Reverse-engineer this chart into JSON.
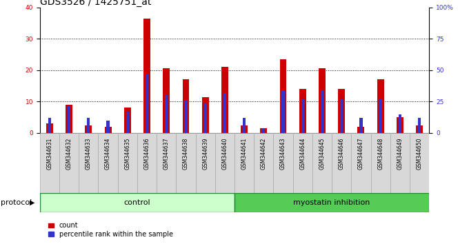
{
  "title": "GDS3526 / 1425751_at",
  "samples": [
    "GSM344631",
    "GSM344632",
    "GSM344633",
    "GSM344634",
    "GSM344635",
    "GSM344636",
    "GSM344637",
    "GSM344638",
    "GSM344639",
    "GSM344640",
    "GSM344641",
    "GSM344642",
    "GSM344643",
    "GSM344644",
    "GSM344645",
    "GSM344646",
    "GSM344647",
    "GSM344648",
    "GSM344649",
    "GSM344650"
  ],
  "count": [
    3,
    9,
    2.5,
    2,
    8,
    36.5,
    20.5,
    17,
    11.5,
    21,
    2.5,
    1.5,
    23.5,
    14,
    20.5,
    14,
    2,
    17,
    5,
    2.5
  ],
  "percentile": [
    12,
    22,
    12,
    10,
    17,
    47,
    30,
    26,
    24,
    32,
    12,
    4,
    34,
    27,
    34,
    27,
    12,
    27,
    15,
    12
  ],
  "control_count": 10,
  "control_label": "control",
  "treatment_label": "myostatin inhibition",
  "protocol_label": "protocol",
  "legend_count": "count",
  "legend_percentile": "percentile rank within the sample",
  "red_color": "#cc0000",
  "blue_color": "#3333cc",
  "ylim_left": [
    0,
    40
  ],
  "ylim_right": [
    0,
    100
  ],
  "yticks_left": [
    0,
    10,
    20,
    30,
    40
  ],
  "yticks_right": [
    0,
    25,
    50,
    75,
    100
  ],
  "ytick_right_labels": [
    "0",
    "25",
    "50",
    "75",
    "100%"
  ],
  "red_bar_width": 0.35,
  "blue_bar_width": 0.15,
  "bg_plot": "#ffffff",
  "bg_xticklabel": "#d8d8d8",
  "bg_control": "#ccffcc",
  "bg_treatment": "#55cc55",
  "title_fontsize": 10,
  "tick_fontsize": 6.5,
  "protocol_fontsize": 8
}
